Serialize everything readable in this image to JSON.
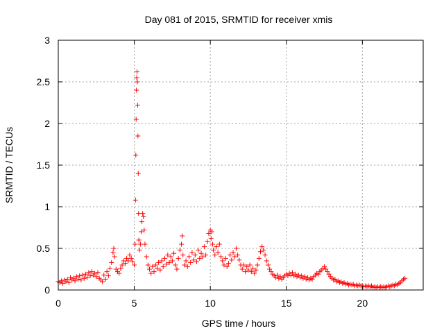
{
  "chart_data": {
    "type": "scatter",
    "title": "Day 081 of 2015, SRMTID for receiver xmis",
    "xlabel": "GPS time / hours",
    "ylabel": "SRMTID / TECUs",
    "xlim": [
      0,
      24
    ],
    "ylim": [
      0,
      3
    ],
    "xticks": [
      0,
      5,
      10,
      15,
      20
    ],
    "yticks": [
      0,
      0.5,
      1,
      1.5,
      2,
      2.5,
      3
    ],
    "xtick_labels": [
      "0",
      "5",
      "10",
      "15",
      "20"
    ],
    "ytick_labels": [
      "0",
      "0.5",
      "1",
      "1.5",
      "2",
      "2.5",
      "3"
    ],
    "grid": true,
    "marker": "+",
    "series": [
      {
        "name": "SRMTID",
        "color": "#ff0000",
        "points": [
          [
            0.0,
            0.1
          ],
          [
            0.1,
            0.09
          ],
          [
            0.2,
            0.11
          ],
          [
            0.3,
            0.08
          ],
          [
            0.4,
            0.12
          ],
          [
            0.5,
            0.1
          ],
          [
            0.6,
            0.13
          ],
          [
            0.7,
            0.09
          ],
          [
            0.8,
            0.15
          ],
          [
            0.9,
            0.12
          ],
          [
            1.0,
            0.14
          ],
          [
            1.1,
            0.11
          ],
          [
            1.2,
            0.16
          ],
          [
            1.3,
            0.13
          ],
          [
            1.4,
            0.17
          ],
          [
            1.5,
            0.12
          ],
          [
            1.6,
            0.18
          ],
          [
            1.7,
            0.14
          ],
          [
            1.8,
            0.19
          ],
          [
            1.9,
            0.15
          ],
          [
            2.0,
            0.21
          ],
          [
            2.1,
            0.17
          ],
          [
            2.2,
            0.22
          ],
          [
            2.3,
            0.18
          ],
          [
            2.4,
            0.2
          ],
          [
            2.5,
            0.16
          ],
          [
            2.6,
            0.21
          ],
          [
            2.7,
            0.14
          ],
          [
            2.8,
            0.12
          ],
          [
            2.9,
            0.1
          ],
          [
            3.0,
            0.18
          ],
          [
            3.1,
            0.13
          ],
          [
            3.2,
            0.22
          ],
          [
            3.3,
            0.17
          ],
          [
            3.4,
            0.26
          ],
          [
            3.5,
            0.33
          ],
          [
            3.6,
            0.45
          ],
          [
            3.65,
            0.5
          ],
          [
            3.7,
            0.4
          ],
          [
            3.8,
            0.25
          ],
          [
            3.9,
            0.22
          ],
          [
            4.0,
            0.2
          ],
          [
            4.1,
            0.26
          ],
          [
            4.2,
            0.3
          ],
          [
            4.3,
            0.35
          ],
          [
            4.4,
            0.32
          ],
          [
            4.5,
            0.38
          ],
          [
            4.6,
            0.35
          ],
          [
            4.7,
            0.42
          ],
          [
            4.8,
            0.38
          ],
          [
            4.9,
            0.34
          ],
          [
            5.0,
            0.3
          ],
          [
            5.05,
            0.55
          ],
          [
            5.08,
            1.08
          ],
          [
            5.1,
            1.62
          ],
          [
            5.12,
            2.05
          ],
          [
            5.14,
            2.4
          ],
          [
            5.16,
            2.55
          ],
          [
            5.18,
            2.62
          ],
          [
            5.2,
            2.5
          ],
          [
            5.22,
            2.22
          ],
          [
            5.24,
            1.85
          ],
          [
            5.26,
            1.4
          ],
          [
            5.28,
            0.92
          ],
          [
            5.3,
            0.6
          ],
          [
            5.35,
            0.48
          ],
          [
            5.4,
            0.55
          ],
          [
            5.45,
            0.7
          ],
          [
            5.5,
            0.82
          ],
          [
            5.55,
            0.92
          ],
          [
            5.6,
            0.88
          ],
          [
            5.65,
            0.72
          ],
          [
            5.7,
            0.55
          ],
          [
            5.8,
            0.4
          ],
          [
            5.9,
            0.3
          ],
          [
            6.0,
            0.25
          ],
          [
            6.1,
            0.2
          ],
          [
            6.2,
            0.28
          ],
          [
            6.3,
            0.22
          ],
          [
            6.4,
            0.3
          ],
          [
            6.5,
            0.26
          ],
          [
            6.6,
            0.33
          ],
          [
            6.7,
            0.24
          ],
          [
            6.8,
            0.35
          ],
          [
            6.9,
            0.28
          ],
          [
            7.0,
            0.38
          ],
          [
            7.1,
            0.31
          ],
          [
            7.2,
            0.42
          ],
          [
            7.3,
            0.33
          ],
          [
            7.4,
            0.4
          ],
          [
            7.5,
            0.35
          ],
          [
            7.6,
            0.44
          ],
          [
            7.7,
            0.3
          ],
          [
            7.8,
            0.25
          ],
          [
            7.9,
            0.38
          ],
          [
            8.0,
            0.48
          ],
          [
            8.1,
            0.55
          ],
          [
            8.15,
            0.65
          ],
          [
            8.2,
            0.42
          ],
          [
            8.3,
            0.3
          ],
          [
            8.4,
            0.35
          ],
          [
            8.5,
            0.28
          ],
          [
            8.6,
            0.4
          ],
          [
            8.7,
            0.33
          ],
          [
            8.8,
            0.45
          ],
          [
            8.9,
            0.36
          ],
          [
            9.0,
            0.42
          ],
          [
            9.1,
            0.34
          ],
          [
            9.2,
            0.48
          ],
          [
            9.3,
            0.38
          ],
          [
            9.4,
            0.44
          ],
          [
            9.5,
            0.4
          ],
          [
            9.6,
            0.52
          ],
          [
            9.7,
            0.42
          ],
          [
            9.8,
            0.58
          ],
          [
            9.9,
            0.68
          ],
          [
            10.0,
            0.72
          ],
          [
            10.05,
            0.62
          ],
          [
            10.1,
            0.7
          ],
          [
            10.15,
            0.55
          ],
          [
            10.2,
            0.48
          ],
          [
            10.3,
            0.42
          ],
          [
            10.4,
            0.52
          ],
          [
            10.5,
            0.45
          ],
          [
            10.6,
            0.55
          ],
          [
            10.7,
            0.4
          ],
          [
            10.8,
            0.35
          ],
          [
            10.9,
            0.3
          ],
          [
            11.0,
            0.38
          ],
          [
            11.1,
            0.28
          ],
          [
            11.2,
            0.32
          ],
          [
            11.3,
            0.42
          ],
          [
            11.4,
            0.36
          ],
          [
            11.5,
            0.45
          ],
          [
            11.6,
            0.4
          ],
          [
            11.7,
            0.5
          ],
          [
            11.8,
            0.42
          ],
          [
            11.9,
            0.36
          ],
          [
            12.0,
            0.3
          ],
          [
            12.1,
            0.25
          ],
          [
            12.2,
            0.3
          ],
          [
            12.3,
            0.22
          ],
          [
            12.4,
            0.28
          ],
          [
            12.5,
            0.24
          ],
          [
            12.6,
            0.3
          ],
          [
            12.7,
            0.22
          ],
          [
            12.8,
            0.26
          ],
          [
            12.9,
            0.2
          ],
          [
            13.0,
            0.24
          ],
          [
            13.1,
            0.3
          ],
          [
            13.2,
            0.38
          ],
          [
            13.3,
            0.46
          ],
          [
            13.4,
            0.52
          ],
          [
            13.5,
            0.48
          ],
          [
            13.6,
            0.42
          ],
          [
            13.7,
            0.35
          ],
          [
            13.8,
            0.3
          ],
          [
            13.9,
            0.25
          ],
          [
            14.0,
            0.22
          ],
          [
            14.1,
            0.19
          ],
          [
            14.2,
            0.17
          ],
          [
            14.3,
            0.15
          ],
          [
            14.4,
            0.18
          ],
          [
            14.5,
            0.14
          ],
          [
            14.6,
            0.16
          ],
          [
            14.7,
            0.13
          ],
          [
            14.8,
            0.15
          ],
          [
            14.9,
            0.17
          ],
          [
            15.0,
            0.19
          ],
          [
            15.1,
            0.17
          ],
          [
            15.2,
            0.2
          ],
          [
            15.3,
            0.18
          ],
          [
            15.4,
            0.21
          ],
          [
            15.5,
            0.17
          ],
          [
            15.6,
            0.19
          ],
          [
            15.7,
            0.16
          ],
          [
            15.8,
            0.18
          ],
          [
            15.9,
            0.15
          ],
          [
            16.0,
            0.17
          ],
          [
            16.1,
            0.14
          ],
          [
            16.2,
            0.16
          ],
          [
            16.3,
            0.13
          ],
          [
            16.4,
            0.15
          ],
          [
            16.5,
            0.12
          ],
          [
            16.6,
            0.14
          ],
          [
            16.7,
            0.13
          ],
          [
            16.8,
            0.16
          ],
          [
            16.9,
            0.18
          ],
          [
            17.0,
            0.2
          ],
          [
            17.1,
            0.19
          ],
          [
            17.2,
            0.22
          ],
          [
            17.3,
            0.24
          ],
          [
            17.4,
            0.26
          ],
          [
            17.5,
            0.28
          ],
          [
            17.6,
            0.25
          ],
          [
            17.7,
            0.22
          ],
          [
            17.8,
            0.19
          ],
          [
            17.9,
            0.16
          ],
          [
            18.0,
            0.14
          ],
          [
            18.1,
            0.12
          ],
          [
            18.2,
            0.13
          ],
          [
            18.3,
            0.1
          ],
          [
            18.4,
            0.11
          ],
          [
            18.5,
            0.09
          ],
          [
            18.6,
            0.1
          ],
          [
            18.7,
            0.08
          ],
          [
            18.8,
            0.09
          ],
          [
            18.9,
            0.07
          ],
          [
            19.0,
            0.08
          ],
          [
            19.1,
            0.06
          ],
          [
            19.2,
            0.07
          ],
          [
            19.3,
            0.06
          ],
          [
            19.4,
            0.07
          ],
          [
            19.5,
            0.05
          ],
          [
            19.6,
            0.06
          ],
          [
            19.7,
            0.05
          ],
          [
            19.8,
            0.06
          ],
          [
            19.9,
            0.05
          ],
          [
            20.0,
            0.05
          ],
          [
            20.1,
            0.04
          ],
          [
            20.2,
            0.05
          ],
          [
            20.3,
            0.04
          ],
          [
            20.4,
            0.05
          ],
          [
            20.5,
            0.04
          ],
          [
            20.6,
            0.05
          ],
          [
            20.7,
            0.03
          ],
          [
            20.8,
            0.04
          ],
          [
            20.9,
            0.03
          ],
          [
            21.0,
            0.04
          ],
          [
            21.1,
            0.03
          ],
          [
            21.2,
            0.04
          ],
          [
            21.3,
            0.03
          ],
          [
            21.4,
            0.04
          ],
          [
            21.5,
            0.03
          ],
          [
            21.6,
            0.04
          ],
          [
            21.7,
            0.05
          ],
          [
            21.8,
            0.04
          ],
          [
            21.9,
            0.05
          ],
          [
            22.0,
            0.06
          ],
          [
            22.1,
            0.05
          ],
          [
            22.2,
            0.07
          ],
          [
            22.3,
            0.06
          ],
          [
            22.4,
            0.08
          ],
          [
            22.5,
            0.09
          ],
          [
            22.6,
            0.11
          ],
          [
            22.7,
            0.13
          ],
          [
            22.8,
            0.14
          ]
        ]
      }
    ]
  }
}
